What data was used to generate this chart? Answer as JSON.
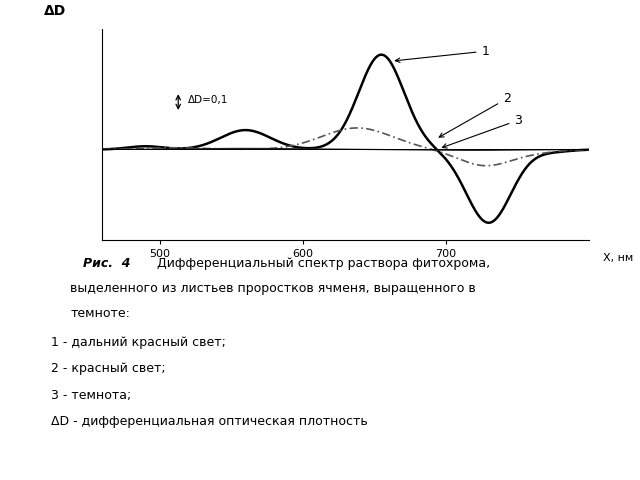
{
  "x_min": 460,
  "x_max": 800,
  "x_ticks": [
    500,
    600,
    700
  ],
  "x_label": "X, нм",
  "y_label": "ΔD",
  "bg_color": "#ffffff",
  "line1_color": "#000000",
  "line2_color": "#555555",
  "line3_color": "#222222",
  "scale_label": "ΔD=0,1",
  "legend1": "1 - дальний красный свет;",
  "legend2": "2 - красный свет;",
  "legend3": "3 - темнота;",
  "legend4": "ΔD - дифференциальная оптическая плотность"
}
